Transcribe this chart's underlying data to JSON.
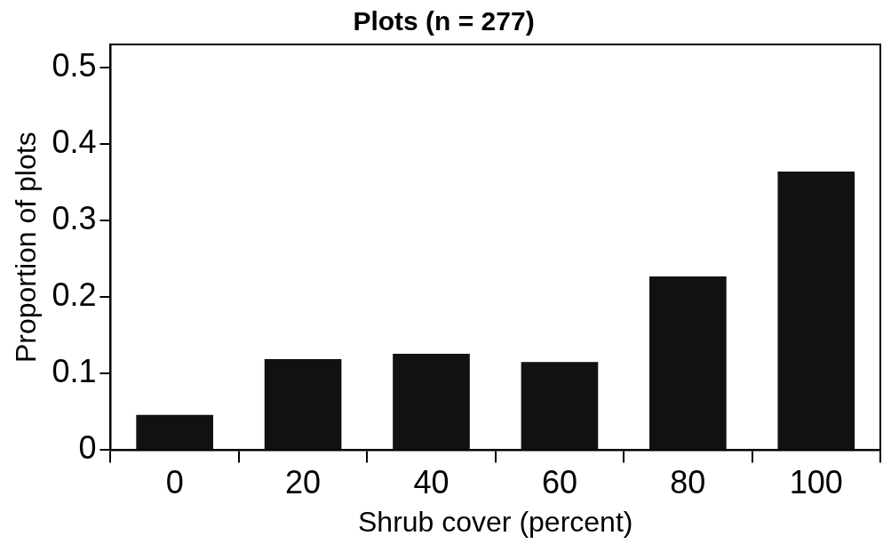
{
  "chart_data": {
    "type": "bar",
    "title": "Plots (n = 277)",
    "xlabel": "Shrub cover (percent)",
    "ylabel": "Proportion of plots",
    "categories": [
      "0",
      "20",
      "40",
      "60",
      "80",
      "100"
    ],
    "values": [
      0.046,
      0.119,
      0.126,
      0.115,
      0.227,
      0.364
    ],
    "color": "#111111",
    "ylim": [
      0,
      0.53
    ],
    "yticks": [
      0,
      0.1,
      0.2,
      0.3,
      0.4,
      0.5
    ],
    "grid": false,
    "legend": false
  }
}
